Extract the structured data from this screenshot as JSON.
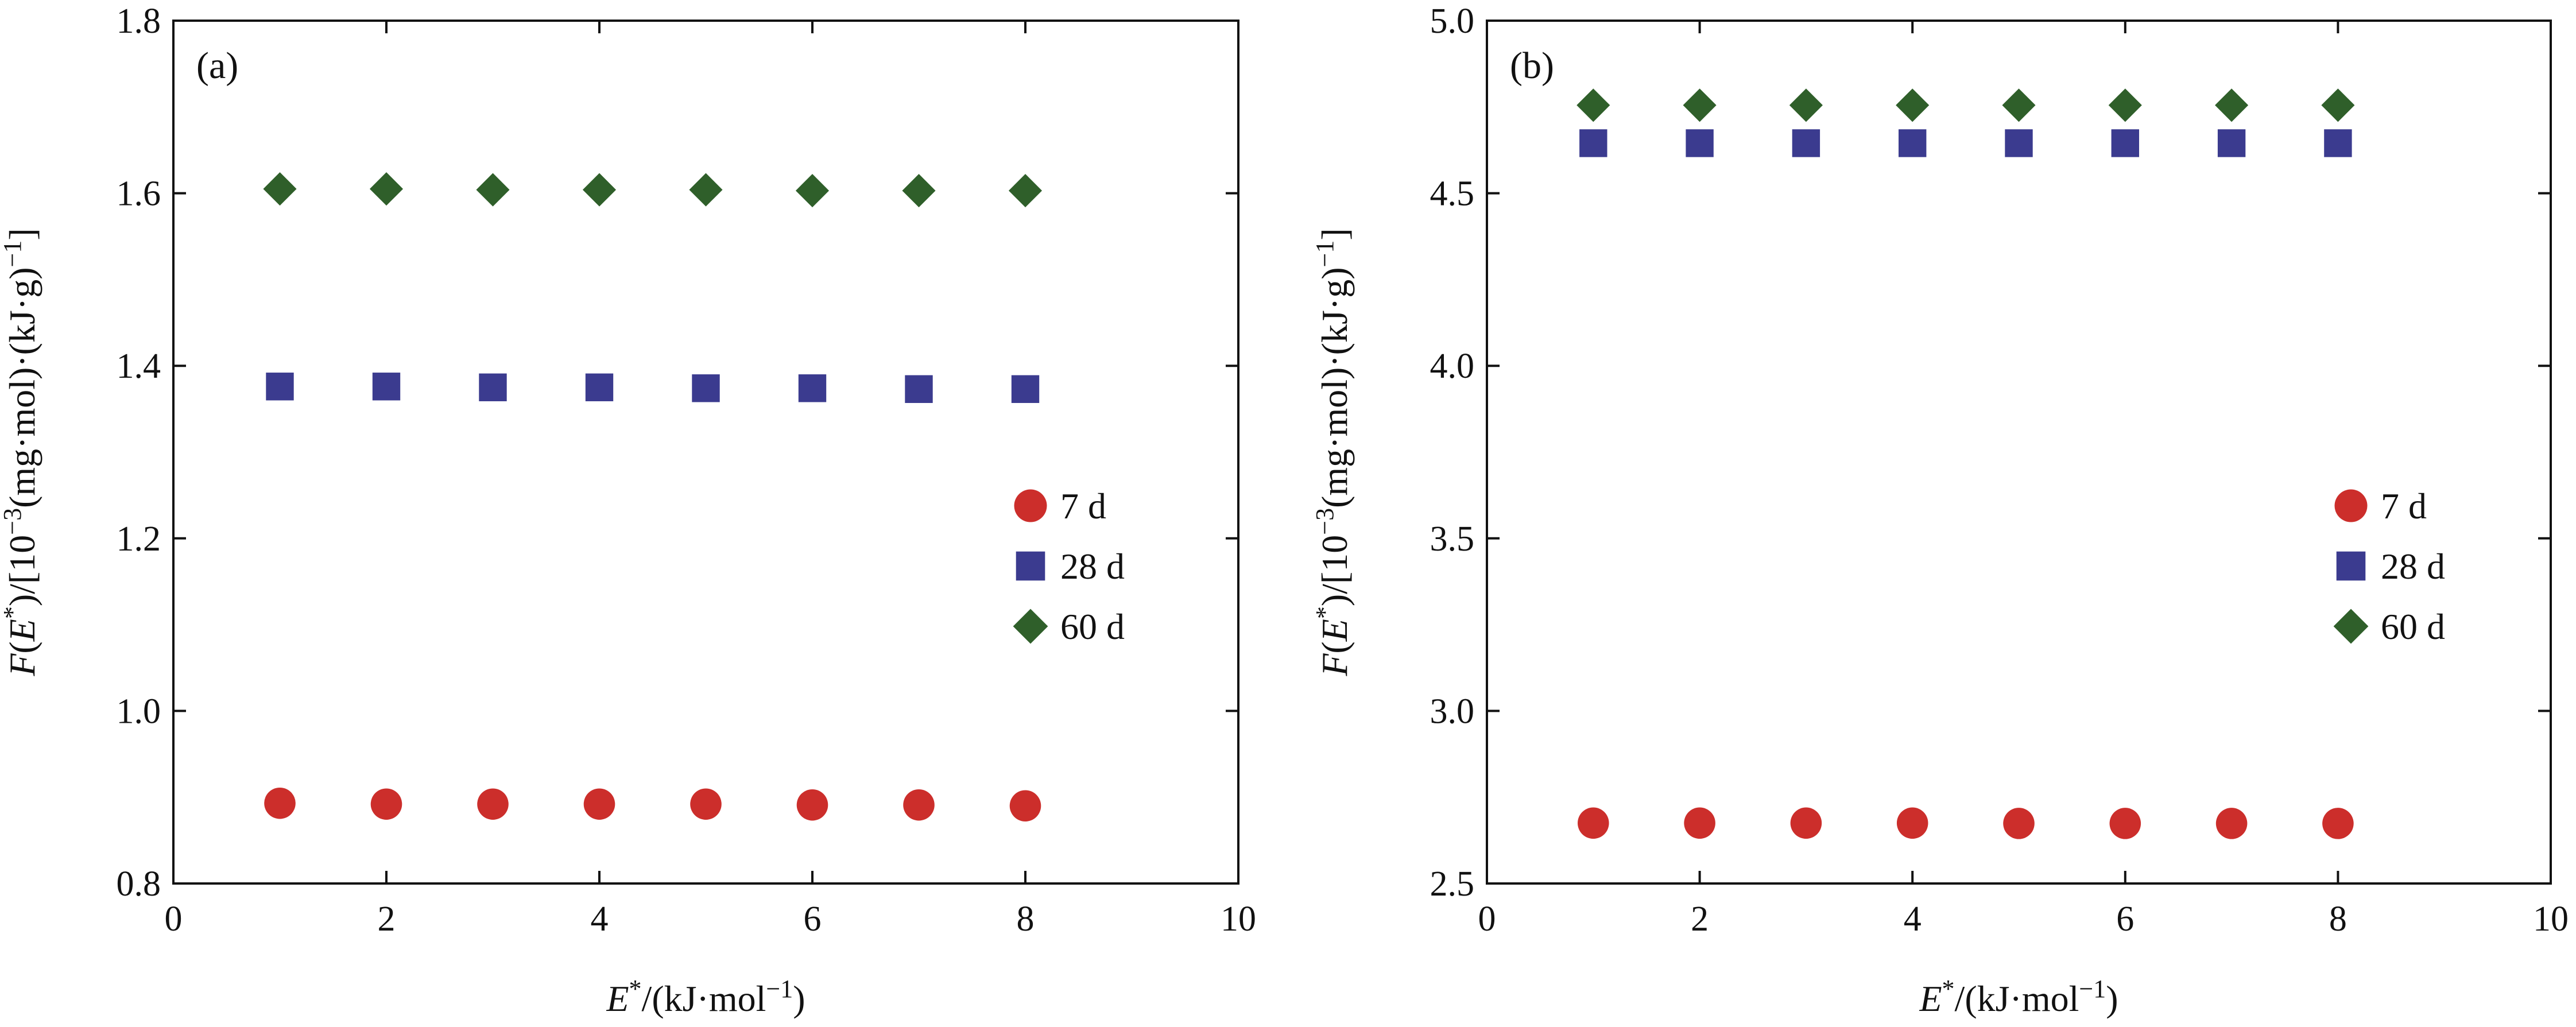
{
  "chart_data": [
    {
      "type": "scatter",
      "panel_label": "(a)",
      "xlim": [
        0,
        10
      ],
      "ylim": [
        0.8,
        1.8
      ],
      "xticks": [
        0,
        2,
        4,
        6,
        8,
        10
      ],
      "yticks": [
        0.8,
        1.0,
        1.2,
        1.4,
        1.6,
        1.8
      ],
      "xtick_labels": [
        "0",
        "2",
        "4",
        "6",
        "8",
        "10"
      ],
      "ytick_labels": [
        "0.8",
        "1.0",
        "1.2",
        "1.4",
        "1.6",
        "1.8"
      ],
      "xlabel": {
        "main": "E",
        "sup": "*",
        "units_pre": "/(kJ·mol",
        "units_sup": "−1",
        "units_post": ")"
      },
      "ylabel": {
        "F": "F",
        "open": "(",
        "E": "E",
        "star": "*",
        "mid1": ")/[10",
        "exp": "−3",
        "mid2": "(mg·mol)·(kJ·g)",
        "exp2": "−1",
        "close": "]"
      },
      "legend_position": "center-right",
      "x": [
        1,
        2,
        3,
        4,
        5,
        6,
        7,
        8
      ],
      "series": [
        {
          "name": "7 d",
          "marker": "circle",
          "color": "#cc2e2b",
          "values": [
            0.893,
            0.892,
            0.892,
            0.892,
            0.892,
            0.891,
            0.891,
            0.89
          ]
        },
        {
          "name": "28 d",
          "marker": "square",
          "color": "#3b3b8f",
          "values": [
            1.376,
            1.376,
            1.375,
            1.375,
            1.374,
            1.374,
            1.373,
            1.373
          ]
        },
        {
          "name": "60 d",
          "marker": "diamond",
          "color": "#2f5f2a",
          "values": [
            1.605,
            1.605,
            1.604,
            1.604,
            1.604,
            1.603,
            1.603,
            1.603
          ]
        }
      ]
    },
    {
      "type": "scatter",
      "panel_label": "(b)",
      "xlim": [
        0,
        10
      ],
      "ylim": [
        2.5,
        5.0
      ],
      "xticks": [
        0,
        2,
        4,
        6,
        8,
        10
      ],
      "yticks": [
        2.5,
        3.0,
        3.5,
        4.0,
        4.5,
        5.0
      ],
      "xtick_labels": [
        "0",
        "2",
        "4",
        "6",
        "8",
        "10"
      ],
      "ytick_labels": [
        "2.5",
        "3.0",
        "3.5",
        "4.0",
        "4.5",
        "5.0"
      ],
      "xlabel": {
        "main": "E",
        "sup": "*",
        "units_pre": "/(kJ·mol",
        "units_sup": "−1",
        "units_post": ")"
      },
      "ylabel": {
        "F": "F",
        "open": "(",
        "E": "E",
        "star": "*",
        "mid1": ")/[10",
        "exp": "−3",
        "mid2": "(mg·mol)·(kJ·g)",
        "exp2": "−1",
        "close": "]"
      },
      "legend_position": "center-right",
      "x": [
        1,
        2,
        3,
        4,
        5,
        6,
        7,
        8
      ],
      "series": [
        {
          "name": "7 d",
          "marker": "circle",
          "color": "#cc2e2b",
          "values": [
            2.675,
            2.675,
            2.675,
            2.675,
            2.674,
            2.674,
            2.674,
            2.674
          ]
        },
        {
          "name": "28 d",
          "marker": "square",
          "color": "#3b3b8f",
          "values": [
            4.645,
            4.645,
            4.645,
            4.645,
            4.645,
            4.645,
            4.645,
            4.645
          ]
        },
        {
          "name": "60 d",
          "marker": "diamond",
          "color": "#2f5f2a",
          "values": [
            4.755,
            4.755,
            4.755,
            4.755,
            4.755,
            4.755,
            4.755,
            4.755
          ]
        }
      ]
    }
  ]
}
